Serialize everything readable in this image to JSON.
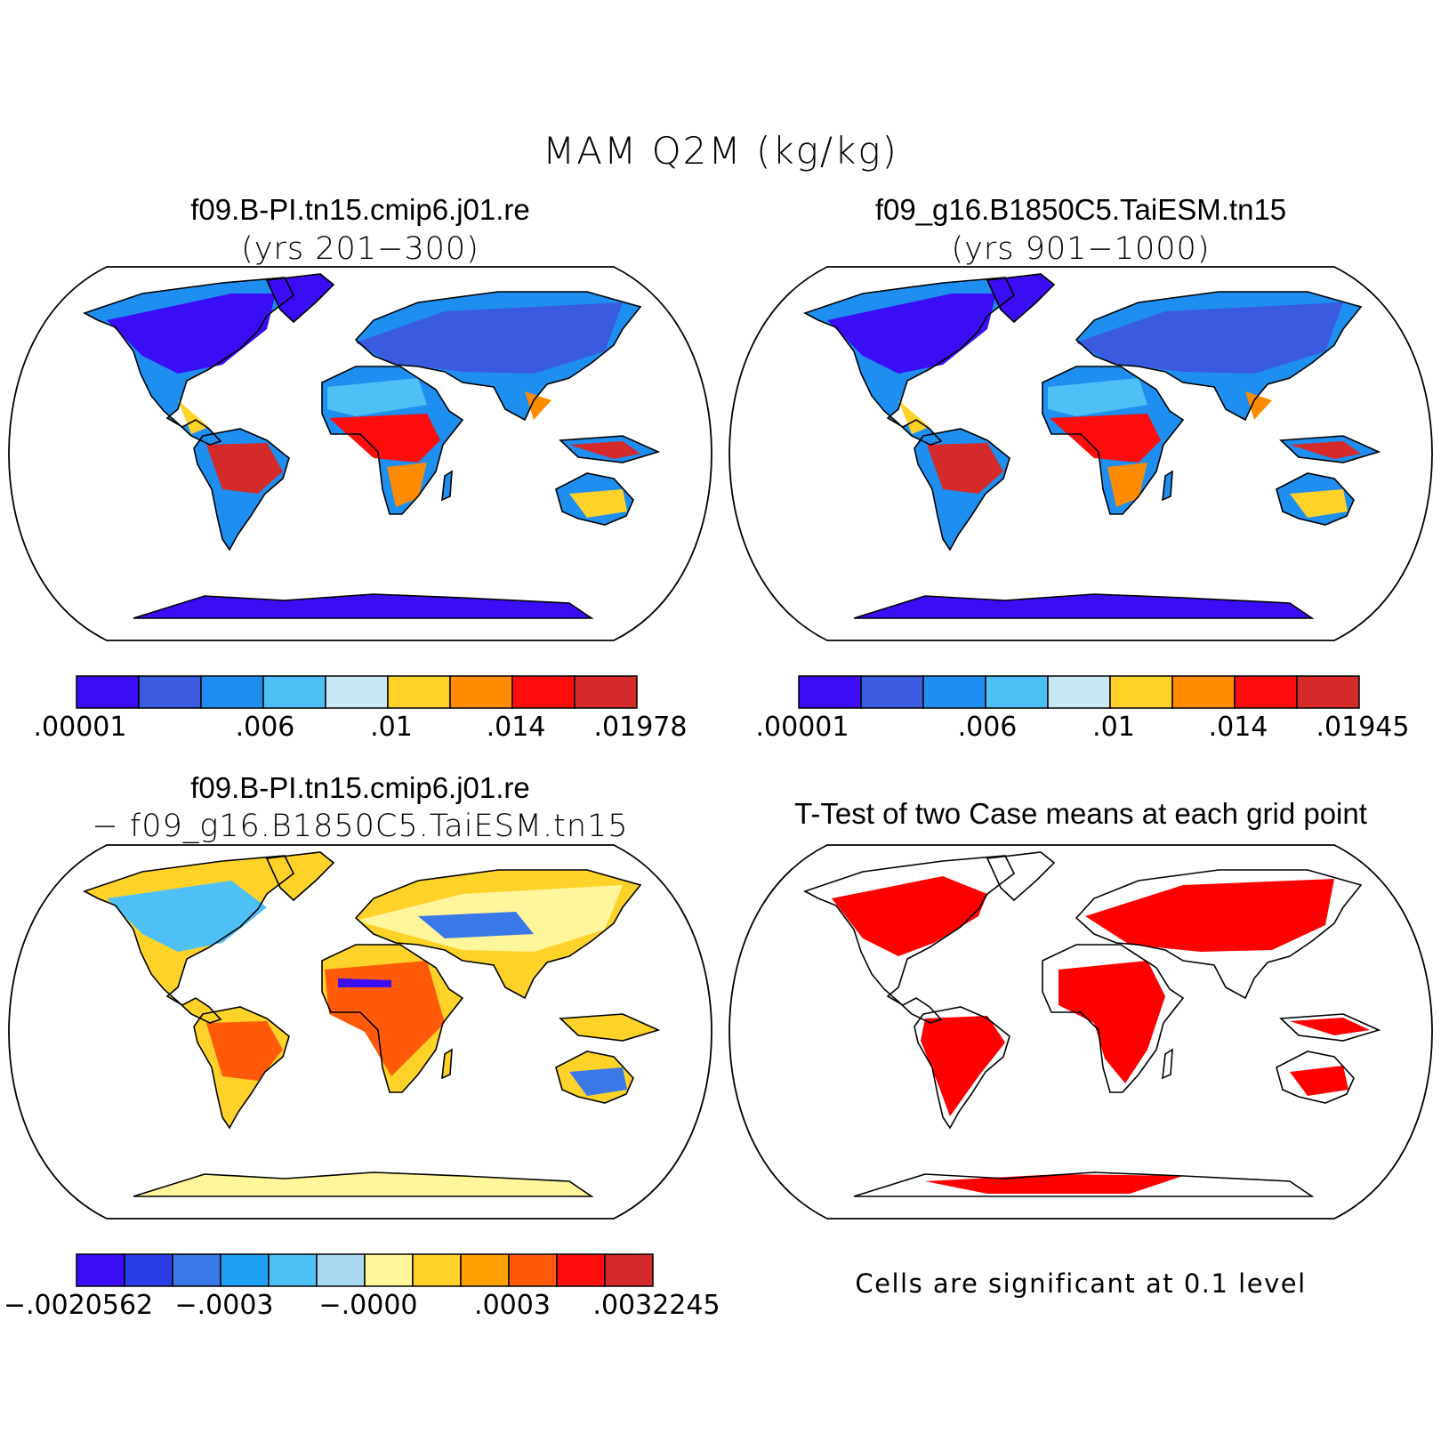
{
  "figure": {
    "title": "MAM Q2M (kg/kg)"
  },
  "panels": [
    {
      "id": "case1",
      "title": "f09.B-PI.tn15.cmip6.j01.re",
      "subtitle": "(yrs 201−300)",
      "colorbar": {
        "colors": [
          "#3a0df5",
          "#3a5ae0",
          "#1e8ef0",
          "#4fc0f5",
          "#c9e6f7",
          "#ffd22a",
          "#ff8c00",
          "#ff0d0d",
          "#d42a2a"
        ],
        "labels": [
          ".00001",
          ".006",
          ".01",
          ".014",
          ".01978"
        ]
      }
    },
    {
      "id": "case2",
      "title": "f09_g16.B1850C5.TaiESM.tn15",
      "subtitle": "(yrs 901−1000)",
      "colorbar": {
        "colors": [
          "#3a0df5",
          "#3a5ae0",
          "#1e8ef0",
          "#4fc0f5",
          "#c9e6f7",
          "#ffd22a",
          "#ff8c00",
          "#ff0d0d",
          "#d42a2a"
        ],
        "labels": [
          ".00001",
          ".006",
          ".01",
          ".014",
          ".01945"
        ]
      }
    },
    {
      "id": "diff",
      "title": "f09.B-PI.tn15.cmip6.j01.re",
      "subtitle": "− f09_g16.B1850C5.TaiESM.tn15",
      "colorbar": {
        "colors": [
          "#3a0df5",
          "#2a3ee8",
          "#3a78e8",
          "#1ea0f5",
          "#4fc0f5",
          "#a9d9f0",
          "#fff59a",
          "#ffd22a",
          "#ffa000",
          "#ff5a0a",
          "#ff0d0d",
          "#d42a2a"
        ],
        "labels": [
          "−.0020562",
          "−.0003",
          "−.0000",
          ".0003",
          ".0032245"
        ]
      }
    },
    {
      "id": "ttest",
      "title": "T-Test of two Case means at each grid point",
      "note": "Cells are significant at 0.1 level",
      "colors": {
        "significant": "#ff0000"
      }
    }
  ]
}
